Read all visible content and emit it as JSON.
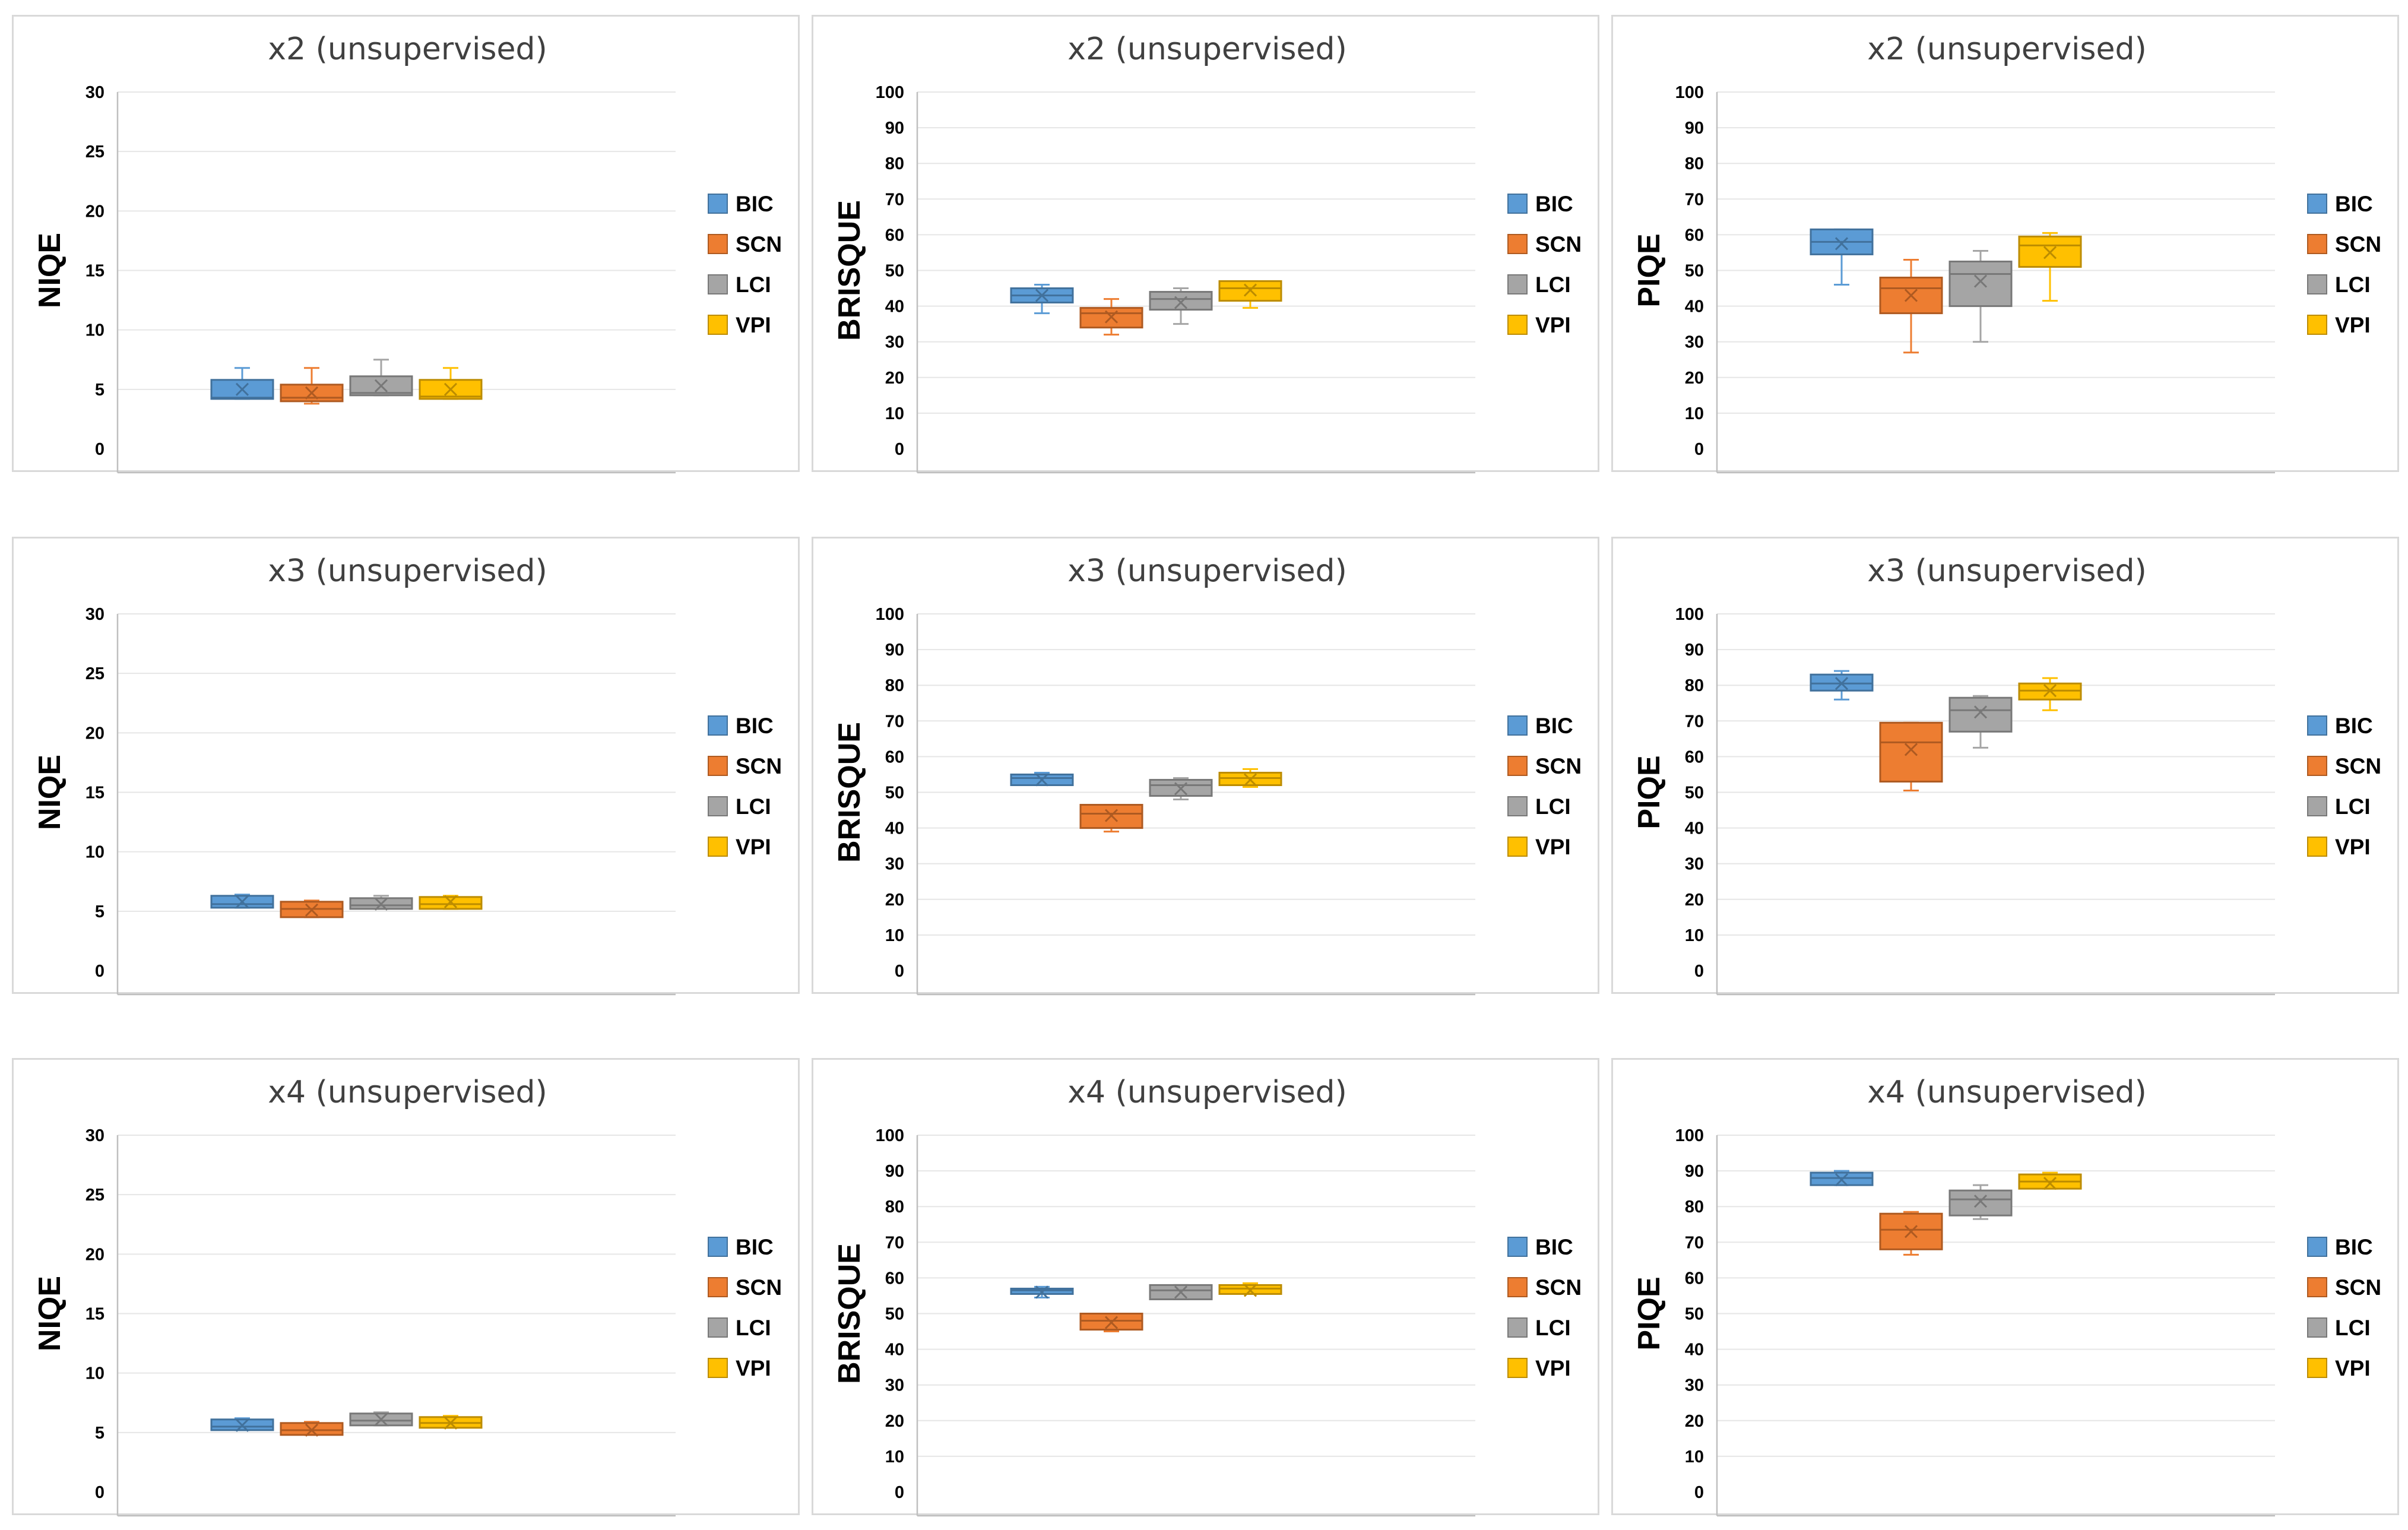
{
  "colors": {
    "BIC": "#5b9bd5",
    "SCN": "#ed7d31",
    "LCI": "#a5a5a5",
    "VPI": "#ffc000",
    "BIC_edge": "#41719c",
    "SCN_edge": "#ae5a21",
    "LCI_edge": "#787878",
    "VPI_edge": "#bc8c00"
  },
  "chart_data": [
    {
      "type": "box",
      "title": "x2 (unsupervised)",
      "ylabel": "NIQE",
      "ylim": [
        0,
        30
      ],
      "yticks": [
        0,
        5,
        10,
        15,
        20,
        25,
        30
      ],
      "series": [
        {
          "name": "BIC",
          "min": 4.2,
          "q1": 4.2,
          "median": 4.3,
          "q3": 5.8,
          "max": 6.8,
          "mean": 5.0
        },
        {
          "name": "SCN",
          "min": 3.8,
          "q1": 4.0,
          "median": 4.3,
          "q3": 5.4,
          "max": 6.8,
          "mean": 4.7
        },
        {
          "name": "LCI",
          "min": 4.5,
          "q1": 4.5,
          "median": 4.7,
          "q3": 6.1,
          "max": 7.5,
          "mean": 5.3
        },
        {
          "name": "VPI",
          "min": 4.2,
          "q1": 4.2,
          "median": 4.4,
          "q3": 5.8,
          "max": 6.8,
          "mean": 5.0
        }
      ]
    },
    {
      "type": "box",
      "title": "x2 (unsupervised)",
      "ylabel": "BRISQUE",
      "ylim": [
        0,
        100
      ],
      "yticks": [
        0,
        10,
        20,
        30,
        40,
        50,
        60,
        70,
        80,
        90,
        100
      ],
      "series": [
        {
          "name": "BIC",
          "min": 38,
          "q1": 41,
          "median": 43,
          "q3": 45,
          "max": 46,
          "mean": 43
        },
        {
          "name": "SCN",
          "min": 32,
          "q1": 34,
          "median": 38,
          "q3": 39.5,
          "max": 42,
          "mean": 37
        },
        {
          "name": "LCI",
          "min": 35,
          "q1": 39,
          "median": 42,
          "q3": 44,
          "max": 45,
          "mean": 41
        },
        {
          "name": "VPI",
          "min": 39.5,
          "q1": 41.5,
          "median": 45,
          "q3": 47,
          "max": 47,
          "mean": 44.5
        }
      ]
    },
    {
      "type": "box",
      "title": "x2 (unsupervised)",
      "ylabel": "PIQE",
      "ylim": [
        0,
        100
      ],
      "yticks": [
        0,
        10,
        20,
        30,
        40,
        50,
        60,
        70,
        80,
        90,
        100
      ],
      "series": [
        {
          "name": "BIC",
          "min": 46,
          "q1": 54.5,
          "median": 58,
          "q3": 61.5,
          "max": 61.5,
          "mean": 57.5
        },
        {
          "name": "SCN",
          "min": 27,
          "q1": 38,
          "median": 45,
          "q3": 48,
          "max": 53,
          "mean": 43
        },
        {
          "name": "LCI",
          "min": 30,
          "q1": 40,
          "median": 49,
          "q3": 52.5,
          "max": 55.5,
          "mean": 47
        },
        {
          "name": "VPI",
          "min": 41.5,
          "q1": 51,
          "median": 57,
          "q3": 59.5,
          "max": 60.5,
          "mean": 55
        }
      ]
    },
    {
      "type": "box",
      "title": "x3 (unsupervised)",
      "ylabel": "NIQE",
      "ylim": [
        0,
        30
      ],
      "yticks": [
        0,
        5,
        10,
        15,
        20,
        25,
        30
      ],
      "series": [
        {
          "name": "BIC",
          "min": 5.3,
          "q1": 5.3,
          "median": 5.6,
          "q3": 6.3,
          "max": 6.4,
          "mean": 5.8
        },
        {
          "name": "SCN",
          "min": 4.5,
          "q1": 4.5,
          "median": 5.2,
          "q3": 5.8,
          "max": 5.9,
          "mean": 5.1
        },
        {
          "name": "LCI",
          "min": 5.2,
          "q1": 5.2,
          "median": 5.5,
          "q3": 6.1,
          "max": 6.3,
          "mean": 5.6
        },
        {
          "name": "VPI",
          "min": 5.2,
          "q1": 5.2,
          "median": 5.6,
          "q3": 6.2,
          "max": 6.3,
          "mean": 5.8
        }
      ]
    },
    {
      "type": "box",
      "title": "x3 (unsupervised)",
      "ylabel": "BRISQUE",
      "ylim": [
        0,
        100
      ],
      "yticks": [
        0,
        10,
        20,
        30,
        40,
        50,
        60,
        70,
        80,
        90,
        100
      ],
      "series": [
        {
          "name": "BIC",
          "min": 52,
          "q1": 52,
          "median": 54,
          "q3": 55,
          "max": 55.5,
          "mean": 53.5
        },
        {
          "name": "SCN",
          "min": 39,
          "q1": 40,
          "median": 44,
          "q3": 46.5,
          "max": 46.5,
          "mean": 43.5
        },
        {
          "name": "LCI",
          "min": 48,
          "q1": 49,
          "median": 52,
          "q3": 53.5,
          "max": 54,
          "mean": 51
        },
        {
          "name": "VPI",
          "min": 51.5,
          "q1": 52,
          "median": 54,
          "q3": 55.5,
          "max": 56.5,
          "mean": 53.5
        }
      ]
    },
    {
      "type": "box",
      "title": "x3 (unsupervised)",
      "ylabel": "PIQE",
      "ylim": [
        0,
        100
      ],
      "yticks": [
        0,
        10,
        20,
        30,
        40,
        50,
        60,
        70,
        80,
        90,
        100
      ],
      "series": [
        {
          "name": "BIC",
          "min": 76,
          "q1": 78.5,
          "median": 80.5,
          "q3": 83,
          "max": 84,
          "mean": 80.5
        },
        {
          "name": "SCN",
          "min": 50.5,
          "q1": 53,
          "median": 64,
          "q3": 69.5,
          "max": 69.5,
          "mean": 62
        },
        {
          "name": "LCI",
          "min": 62.5,
          "q1": 67,
          "median": 73,
          "q3": 76.5,
          "max": 77,
          "mean": 72.5
        },
        {
          "name": "VPI",
          "min": 73,
          "q1": 76,
          "median": 78.5,
          "q3": 80.5,
          "max": 82,
          "mean": 78.5
        }
      ]
    },
    {
      "type": "box",
      "title": "x4 (unsupervised)",
      "ylabel": "NIQE",
      "ylim": [
        0,
        30
      ],
      "yticks": [
        0,
        5,
        10,
        15,
        20,
        25,
        30
      ],
      "series": [
        {
          "name": "BIC",
          "min": 5.2,
          "q1": 5.2,
          "median": 5.5,
          "q3": 6.1,
          "max": 6.2,
          "mean": 5.6
        },
        {
          "name": "SCN",
          "min": 4.8,
          "q1": 4.8,
          "median": 5.2,
          "q3": 5.8,
          "max": 5.9,
          "mean": 5.2
        },
        {
          "name": "LCI",
          "min": 5.6,
          "q1": 5.6,
          "median": 6.0,
          "q3": 6.6,
          "max": 6.7,
          "mean": 6.1
        },
        {
          "name": "VPI",
          "min": 5.4,
          "q1": 5.4,
          "median": 5.8,
          "q3": 6.3,
          "max": 6.4,
          "mean": 5.8
        }
      ]
    },
    {
      "type": "box",
      "title": "x4 (unsupervised)",
      "ylabel": "BRISQUE",
      "ylim": [
        0,
        100
      ],
      "yticks": [
        0,
        10,
        20,
        30,
        40,
        50,
        60,
        70,
        80,
        90,
        100
      ],
      "series": [
        {
          "name": "BIC",
          "min": 54.5,
          "q1": 55.5,
          "median": 56.5,
          "q3": 57,
          "max": 57.5,
          "mean": 56
        },
        {
          "name": "SCN",
          "min": 45,
          "q1": 45.5,
          "median": 48,
          "q3": 50,
          "max": 50,
          "mean": 47.5
        },
        {
          "name": "LCI",
          "min": 54,
          "q1": 54,
          "median": 56.5,
          "q3": 58,
          "max": 58,
          "mean": 56
        },
        {
          "name": "VPI",
          "min": 55.5,
          "q1": 55.5,
          "median": 57,
          "q3": 58,
          "max": 58.5,
          "mean": 56.5
        }
      ]
    },
    {
      "type": "box",
      "title": "x4 (unsupervised)",
      "ylabel": "PIQE",
      "ylim": [
        0,
        100
      ],
      "yticks": [
        0,
        10,
        20,
        30,
        40,
        50,
        60,
        70,
        80,
        90,
        100
      ],
      "series": [
        {
          "name": "BIC",
          "min": 86,
          "q1": 86,
          "median": 88,
          "q3": 89.5,
          "max": 90,
          "mean": 87.5
        },
        {
          "name": "SCN",
          "min": 66.5,
          "q1": 68,
          "median": 73.5,
          "q3": 78,
          "max": 78.5,
          "mean": 73
        },
        {
          "name": "LCI",
          "min": 76.5,
          "q1": 77.5,
          "median": 82,
          "q3": 84.5,
          "max": 86,
          "mean": 81.5
        },
        {
          "name": "VPI",
          "min": 85,
          "q1": 85,
          "median": 87,
          "q3": 89,
          "max": 89.5,
          "mean": 86.5
        }
      ]
    }
  ]
}
